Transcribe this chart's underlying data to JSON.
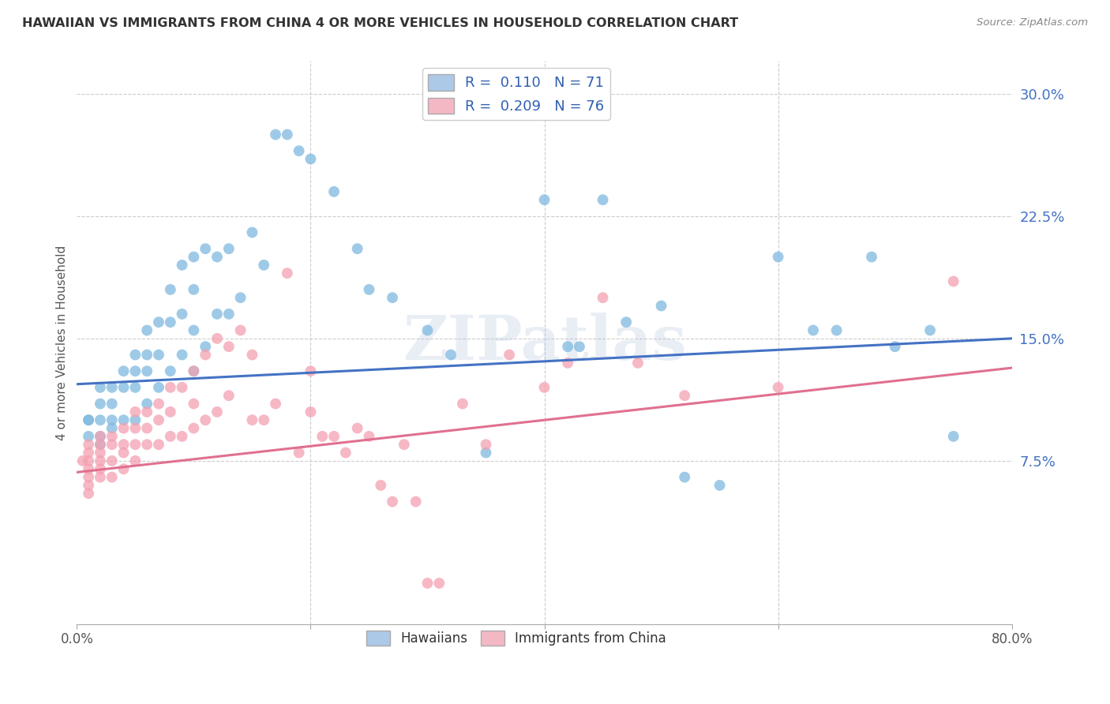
{
  "title": "HAWAIIAN VS IMMIGRANTS FROM CHINA 4 OR MORE VEHICLES IN HOUSEHOLD CORRELATION CHART",
  "source": "Source: ZipAtlas.com",
  "ylabel": "4 or more Vehicles in Household",
  "yticks": [
    0.0,
    0.075,
    0.15,
    0.225,
    0.3
  ],
  "ytick_labels": [
    "",
    "7.5%",
    "15.0%",
    "22.5%",
    "30.0%"
  ],
  "xlim": [
    0.0,
    0.8
  ],
  "ylim": [
    -0.025,
    0.32
  ],
  "hawaiians_R": "0.110",
  "hawaiians_N": "71",
  "china_R": "0.209",
  "china_N": "76",
  "hawaiians_color": "#7fb9e0",
  "china_color": "#f4a0b0",
  "hawaiians_line_color": "#4472c4",
  "china_line_color": "#e07090",
  "legend_box_color_hawaiians": "#adc9e8",
  "legend_box_color_china": "#f4b8c4",
  "watermark": "ZIPatlas",
  "hawaiians_x": [
    0.01,
    0.01,
    0.01,
    0.02,
    0.02,
    0.02,
    0.02,
    0.02,
    0.03,
    0.03,
    0.03,
    0.03,
    0.04,
    0.04,
    0.04,
    0.05,
    0.05,
    0.05,
    0.05,
    0.06,
    0.06,
    0.06,
    0.06,
    0.07,
    0.07,
    0.07,
    0.08,
    0.08,
    0.08,
    0.09,
    0.09,
    0.09,
    0.1,
    0.1,
    0.1,
    0.1,
    0.11,
    0.11,
    0.12,
    0.12,
    0.13,
    0.13,
    0.14,
    0.15,
    0.16,
    0.17,
    0.18,
    0.19,
    0.2,
    0.22,
    0.24,
    0.25,
    0.27,
    0.3,
    0.32,
    0.35,
    0.4,
    0.42,
    0.43,
    0.45,
    0.47,
    0.5,
    0.52,
    0.55,
    0.6,
    0.63,
    0.65,
    0.68,
    0.7,
    0.73,
    0.75
  ],
  "hawaiians_y": [
    0.1,
    0.1,
    0.09,
    0.12,
    0.11,
    0.1,
    0.09,
    0.085,
    0.12,
    0.11,
    0.1,
    0.095,
    0.13,
    0.12,
    0.1,
    0.14,
    0.13,
    0.12,
    0.1,
    0.155,
    0.14,
    0.13,
    0.11,
    0.16,
    0.14,
    0.12,
    0.18,
    0.16,
    0.13,
    0.195,
    0.165,
    0.14,
    0.2,
    0.18,
    0.155,
    0.13,
    0.205,
    0.145,
    0.2,
    0.165,
    0.205,
    0.165,
    0.175,
    0.215,
    0.195,
    0.275,
    0.275,
    0.265,
    0.26,
    0.24,
    0.205,
    0.18,
    0.175,
    0.155,
    0.14,
    0.08,
    0.235,
    0.145,
    0.145,
    0.235,
    0.16,
    0.17,
    0.065,
    0.06,
    0.2,
    0.155,
    0.155,
    0.2,
    0.145,
    0.155,
    0.09
  ],
  "china_x": [
    0.005,
    0.01,
    0.01,
    0.01,
    0.01,
    0.01,
    0.01,
    0.01,
    0.02,
    0.02,
    0.02,
    0.02,
    0.02,
    0.02,
    0.03,
    0.03,
    0.03,
    0.03,
    0.04,
    0.04,
    0.04,
    0.04,
    0.05,
    0.05,
    0.05,
    0.05,
    0.06,
    0.06,
    0.06,
    0.07,
    0.07,
    0.07,
    0.08,
    0.08,
    0.08,
    0.09,
    0.09,
    0.1,
    0.1,
    0.1,
    0.11,
    0.11,
    0.12,
    0.12,
    0.13,
    0.13,
    0.14,
    0.15,
    0.15,
    0.16,
    0.17,
    0.18,
    0.19,
    0.2,
    0.2,
    0.21,
    0.22,
    0.23,
    0.24,
    0.25,
    0.26,
    0.27,
    0.28,
    0.29,
    0.3,
    0.31,
    0.33,
    0.35,
    0.37,
    0.4,
    0.42,
    0.45,
    0.48,
    0.52,
    0.6,
    0.75
  ],
  "china_y": [
    0.075,
    0.085,
    0.08,
    0.075,
    0.07,
    0.065,
    0.06,
    0.055,
    0.09,
    0.085,
    0.08,
    0.075,
    0.07,
    0.065,
    0.09,
    0.085,
    0.075,
    0.065,
    0.095,
    0.085,
    0.08,
    0.07,
    0.105,
    0.095,
    0.085,
    0.075,
    0.105,
    0.095,
    0.085,
    0.11,
    0.1,
    0.085,
    0.12,
    0.105,
    0.09,
    0.12,
    0.09,
    0.13,
    0.11,
    0.095,
    0.14,
    0.1,
    0.15,
    0.105,
    0.145,
    0.115,
    0.155,
    0.14,
    0.1,
    0.1,
    0.11,
    0.19,
    0.08,
    0.13,
    0.105,
    0.09,
    0.09,
    0.08,
    0.095,
    0.09,
    0.06,
    0.05,
    0.085,
    0.05,
    0.0,
    0.0,
    0.11,
    0.085,
    0.14,
    0.12,
    0.135,
    0.175,
    0.135,
    0.115,
    0.12,
    0.185
  ]
}
